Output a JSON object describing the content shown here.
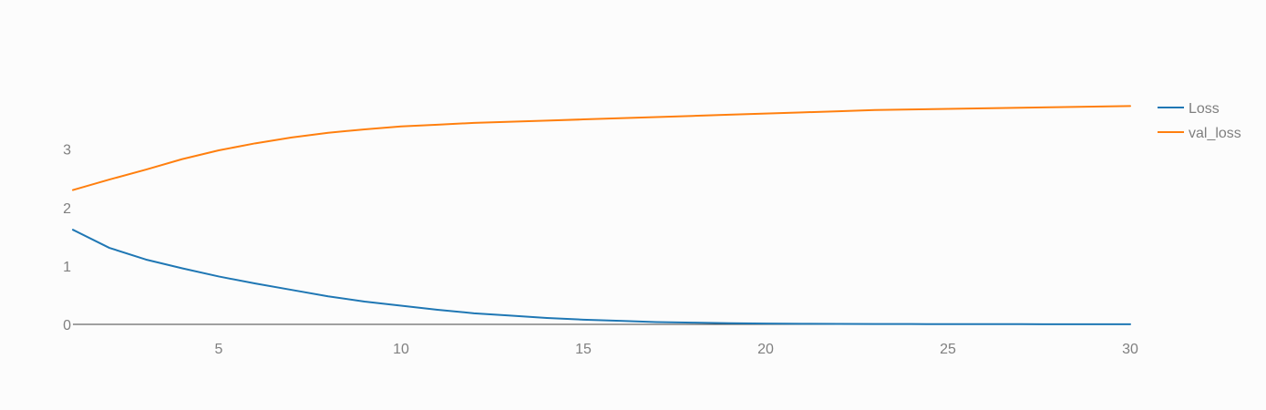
{
  "chart_data": {
    "type": "line",
    "title": "",
    "xlabel": "",
    "ylabel": "",
    "xlim": [
      1,
      30
    ],
    "ylim": [
      0,
      4.65
    ],
    "grid": false,
    "x_ticks": [
      5,
      10,
      15,
      20,
      25,
      30
    ],
    "y_ticks": [
      0,
      1,
      2,
      3
    ],
    "legend_position": "top-right",
    "x": [
      1,
      2,
      3,
      4,
      5,
      6,
      7,
      8,
      9,
      10,
      11,
      12,
      13,
      14,
      15,
      16,
      17,
      18,
      19,
      20,
      21,
      22,
      23,
      24,
      25,
      26,
      27,
      28,
      29,
      30
    ],
    "series": [
      {
        "name": "Loss",
        "color": "#1f77b4",
        "values": [
          1.62,
          1.31,
          1.11,
          0.96,
          0.82,
          0.7,
          0.59,
          0.48,
          0.39,
          0.32,
          0.25,
          0.19,
          0.15,
          0.11,
          0.08,
          0.06,
          0.04,
          0.03,
          0.02,
          0.014,
          0.01,
          0.008,
          0.006,
          0.005,
          0.004,
          0.003,
          0.003,
          0.002,
          0.002,
          0.002
        ]
      },
      {
        "name": "val_loss",
        "color": "#ff7f0e",
        "values": [
          2.3,
          2.48,
          2.65,
          2.83,
          2.98,
          3.1,
          3.2,
          3.28,
          3.34,
          3.39,
          3.42,
          3.45,
          3.47,
          3.49,
          3.51,
          3.53,
          3.55,
          3.57,
          3.59,
          3.61,
          3.63,
          3.65,
          3.67,
          3.68,
          3.69,
          3.7,
          3.71,
          3.72,
          3.73,
          3.74
        ]
      }
    ]
  }
}
